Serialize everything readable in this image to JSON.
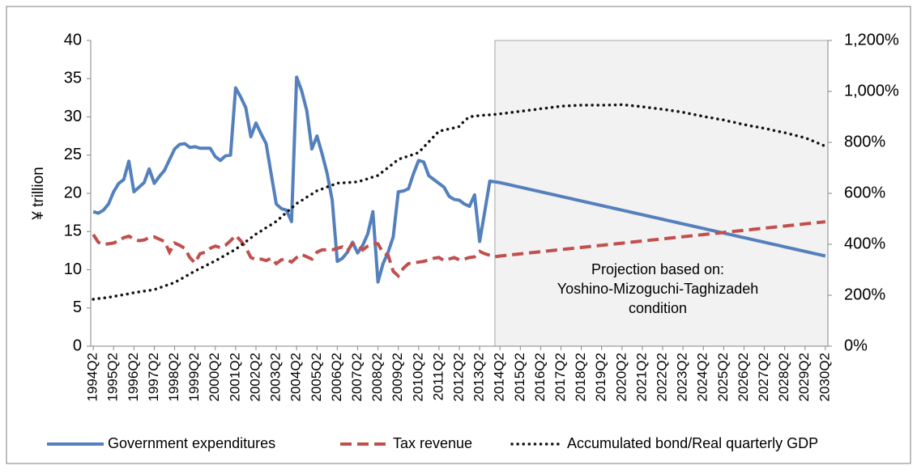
{
  "chart_data": {
    "type": "line",
    "y_label": "¥ trillion",
    "annotation": [
      "Projection based on:",
      "Yoshino-Mizoguchi-Taghizadeh",
      "condition"
    ],
    "shaded_from": "2014Q2",
    "categories": [
      "1994Q2",
      null,
      null,
      null,
      "1995Q2",
      null,
      null,
      null,
      "1996Q2",
      null,
      null,
      null,
      "1997Q2",
      null,
      null,
      null,
      "1998Q2",
      null,
      null,
      null,
      "1999Q2",
      null,
      null,
      null,
      "2000Q2",
      null,
      null,
      null,
      "2001Q2",
      null,
      null,
      null,
      "2002Q2",
      null,
      null,
      null,
      "2003Q2",
      null,
      null,
      null,
      "2004Q2",
      null,
      null,
      null,
      "2005Q2",
      null,
      null,
      null,
      "2006Q2",
      null,
      null,
      null,
      "2007Q2",
      null,
      null,
      null,
      "2008Q2",
      null,
      null,
      null,
      "2009Q2",
      null,
      null,
      null,
      "2010Q2",
      null,
      null,
      null,
      "2011Q2",
      null,
      null,
      null,
      "2012Q2",
      null,
      null,
      null,
      "2013Q2",
      null,
      null,
      null,
      "2014Q2",
      null,
      null,
      null,
      "2015Q2",
      null,
      null,
      null,
      "2016Q2",
      null,
      null,
      null,
      "2017Q2",
      null,
      null,
      null,
      "2018Q2",
      null,
      null,
      null,
      "2019Q2",
      null,
      null,
      null,
      "2020Q2",
      null,
      null,
      null,
      "2021Q2",
      null,
      null,
      null,
      "2022Q2",
      null,
      null,
      null,
      "2023Q2",
      null,
      null,
      null,
      "2024Q2",
      null,
      null,
      null,
      "2025Q2",
      null,
      null,
      null,
      "2026Q2",
      null,
      null,
      null,
      "2027Q2",
      null,
      null,
      null,
      "2028Q2",
      null,
      null,
      null,
      "2029Q2",
      null,
      null,
      null,
      "2030Q2"
    ],
    "series": [
      {
        "name": "Government expenditures",
        "color": "#5480bd",
        "style": "solid",
        "values": [
          17.6,
          17.4,
          17.8,
          18.6,
          20.2,
          21.3,
          21.8,
          24.2,
          20.2,
          20.8,
          21.4,
          23.2,
          21.3,
          22.2,
          23.0,
          24.4,
          25.8,
          26.4,
          26.5,
          26.0,
          26.1,
          25.9,
          25.9,
          25.9,
          24.8,
          24.3,
          24.9,
          25.0,
          33.8,
          32.6,
          31.2,
          27.4,
          29.2,
          27.8,
          26.5,
          22.5,
          18.6,
          18.0,
          17.8,
          16.3,
          35.2,
          33.4,
          30.8,
          25.8,
          27.5,
          25.2,
          22.6,
          19.1,
          11.1,
          11.5,
          12.3,
          13.6,
          12.2,
          13.2,
          14.7,
          17.6,
          8.4,
          10.8,
          12.3,
          14.3,
          20.2,
          20.3,
          20.6,
          22.6,
          24.3,
          24.1,
          22.3,
          21.8,
          21.3,
          20.8,
          19.6,
          19.2,
          19.1,
          18.6,
          18.3,
          19.8,
          13.7,
          17.6,
          21.6,
          21.5,
          21.4,
          21.25,
          21.1,
          20.95,
          20.8,
          20.65,
          20.5,
          20.35,
          20.2,
          20.05,
          19.9,
          19.75,
          19.6,
          19.45,
          19.3,
          19.15,
          19.0,
          18.85,
          18.7,
          18.55,
          18.4,
          18.25,
          18.1,
          17.95,
          17.8,
          17.65,
          17.5,
          17.35,
          17.2,
          17.05,
          16.9,
          16.75,
          16.6,
          16.45,
          16.3,
          16.15,
          16.0,
          15.85,
          15.7,
          15.55,
          15.4,
          15.25,
          15.1,
          14.95,
          14.8,
          14.65,
          14.5,
          14.35,
          14.2,
          14.05,
          13.9,
          13.75,
          13.6,
          13.45,
          13.3,
          13.15,
          13.0,
          12.85,
          12.7,
          12.55,
          12.4,
          12.25,
          12.1,
          11.95,
          11.8
        ]
      },
      {
        "name": "Tax revenue",
        "color": "#c0504d",
        "style": "dashed",
        "values": [
          14.6,
          13.6,
          13.3,
          13.4,
          13.5,
          13.8,
          14.2,
          14.4,
          14.0,
          13.8,
          13.9,
          14.2,
          14.3,
          14.0,
          13.7,
          12.3,
          13.5,
          13.2,
          12.8,
          11.6,
          10.9,
          12.1,
          12.3,
          12.8,
          13.1,
          12.9,
          13.2,
          13.8,
          14.5,
          13.8,
          12.9,
          11.6,
          11.3,
          11.4,
          11.2,
          11.5,
          10.8,
          11.3,
          11.4,
          11.0,
          11.6,
          12.0,
          11.7,
          11.4,
          12.3,
          12.6,
          12.6,
          12.6,
          12.8,
          13.0,
          12.5,
          13.4,
          13.3,
          12.6,
          13.1,
          13.4,
          13.4,
          12.2,
          11.9,
          9.8,
          9.2,
          10.2,
          10.8,
          10.9,
          11.0,
          11.1,
          11.3,
          11.5,
          11.6,
          11.2,
          11.4,
          11.6,
          11.3,
          11.4,
          11.6,
          11.7,
          12.4,
          12.1,
          11.9,
          11.7,
          11.8,
          11.87,
          11.94,
          12.01,
          12.08,
          12.15,
          12.22,
          12.29,
          12.36,
          12.43,
          12.5,
          12.57,
          12.64,
          12.71,
          12.78,
          12.85,
          12.92,
          12.99,
          13.06,
          13.13,
          13.2,
          13.27,
          13.34,
          13.41,
          13.48,
          13.55,
          13.62,
          13.69,
          13.76,
          13.83,
          13.9,
          13.97,
          14.04,
          14.11,
          14.18,
          14.25,
          14.32,
          14.39,
          14.46,
          14.53,
          14.6,
          14.67,
          14.74,
          14.81,
          14.88,
          14.95,
          15.02,
          15.09,
          15.16,
          15.23,
          15.3,
          15.37,
          15.44,
          15.51,
          15.58,
          15.65,
          15.72,
          15.79,
          15.86,
          15.93,
          16.0,
          16.07,
          16.14,
          16.21,
          16.28
        ]
      },
      {
        "name": "Accumulated bond/Real quarterly GDP",
        "color": "#111111",
        "style": "dotted",
        "axis": "y2",
        "values": [
          184,
          187,
          189,
          192,
          195,
          199,
          202,
          206,
          210,
          213,
          216,
          219,
          222,
          229,
          236,
          243,
          250,
          261,
          272,
          284,
          295,
          305,
          315,
          325,
          335,
          346,
          358,
          369,
          380,
          395,
          410,
          425,
          440,
          452,
          465,
          477,
          490,
          507,
          525,
          542,
          560,
          572,
          585,
          597,
          610,
          617,
          625,
          632,
          640,
          641,
          642,
          644,
          645,
          651,
          657,
          664,
          670,
          686,
          701,
          717,
          733,
          740,
          746,
          753,
          760,
          781,
          802,
          823,
          844,
          848,
          853,
          857,
          862,
          885,
          900,
          903,
          905,
          907,
          908,
          910,
          912,
          914,
          917,
          919,
          922,
          924,
          927,
          929,
          932,
          934,
          937,
          939,
          942,
          943,
          944,
          945,
          946,
          946,
          946,
          946,
          946,
          946,
          947,
          947,
          948,
          946,
          944,
          942,
          940,
          937,
          935,
          932,
          930,
          927,
          924,
          921,
          918,
          914,
          910,
          906,
          902,
          898,
          895,
          891,
          888,
          883,
          879,
          874,
          870,
          866,
          862,
          859,
          855,
          851,
          846,
          842,
          838,
          833,
          828,
          823,
          818,
          810,
          802,
          793,
          785
        ]
      }
    ],
    "ylim": [
      0,
      40
    ],
    "yticks": [
      0,
      5,
      10,
      15,
      20,
      25,
      30,
      35,
      40
    ],
    "y2lim": [
      0,
      1200
    ],
    "y2ticks": [
      {
        "value": 0,
        "label": "0%"
      },
      {
        "value": 200,
        "label": "200%"
      },
      {
        "value": 400,
        "label": "400%"
      },
      {
        "value": 600,
        "label": "600%"
      },
      {
        "value": 800,
        "label": "800%"
      },
      {
        "value": 1000,
        "label": "1,000%"
      },
      {
        "value": 1200,
        "label": "1,200%"
      }
    ],
    "grid": false,
    "legend": "bottom"
  }
}
